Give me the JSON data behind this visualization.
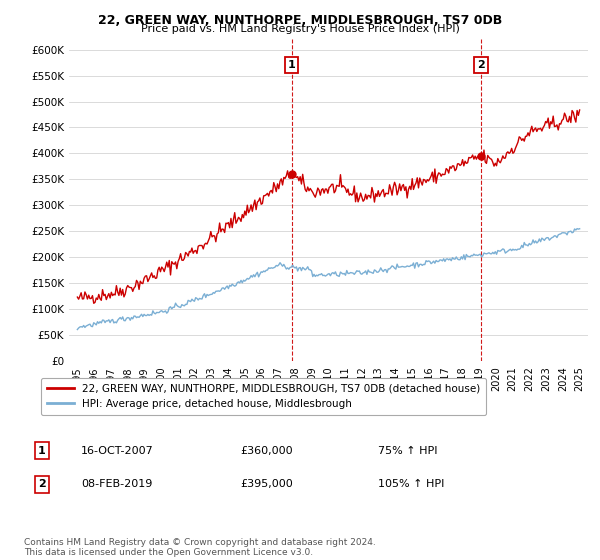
{
  "title": "22, GREEN WAY, NUNTHORPE, MIDDLESBROUGH, TS7 0DB",
  "subtitle": "Price paid vs. HM Land Registry's House Price Index (HPI)",
  "ylabel_ticks": [
    "£0",
    "£50K",
    "£100K",
    "£150K",
    "£200K",
    "£250K",
    "£300K",
    "£350K",
    "£400K",
    "£450K",
    "£500K",
    "£550K",
    "£600K"
  ],
  "ytick_values": [
    0,
    50000,
    100000,
    150000,
    200000,
    250000,
    300000,
    350000,
    400000,
    450000,
    500000,
    550000,
    600000
  ],
  "ylim": [
    0,
    620000
  ],
  "xlim_start": 1994.5,
  "xlim_end": 2025.5,
  "xtick_labels": [
    "1995",
    "1996",
    "1997",
    "1998",
    "1999",
    "2000",
    "2001",
    "2002",
    "2003",
    "2004",
    "2005",
    "2006",
    "2007",
    "2008",
    "2009",
    "2010",
    "2011",
    "2012",
    "2013",
    "2014",
    "2015",
    "2016",
    "2017",
    "2018",
    "2019",
    "2020",
    "2021",
    "2022",
    "2023",
    "2024",
    "2025"
  ],
  "red_line_color": "#cc0000",
  "blue_line_color": "#7bafd4",
  "vline_color": "#cc0000",
  "marker1_x": 2007.8,
  "marker1_y": 360000,
  "marker2_x": 2019.1,
  "marker2_y": 395000,
  "sale1_label": "1",
  "sale2_label": "2",
  "sale1_date": "16-OCT-2007",
  "sale1_price": "£360,000",
  "sale1_hpi": "75% ↑ HPI",
  "sale2_date": "08-FEB-2019",
  "sale2_price": "£395,000",
  "sale2_hpi": "105% ↑ HPI",
  "legend_label1": "22, GREEN WAY, NUNTHORPE, MIDDLESBROUGH, TS7 0DB (detached house)",
  "legend_label2": "HPI: Average price, detached house, Middlesbrough",
  "footnote": "Contains HM Land Registry data © Crown copyright and database right 2024.\nThis data is licensed under the Open Government Licence v3.0.",
  "bg_color": "#ffffff",
  "grid_color": "#cccccc"
}
